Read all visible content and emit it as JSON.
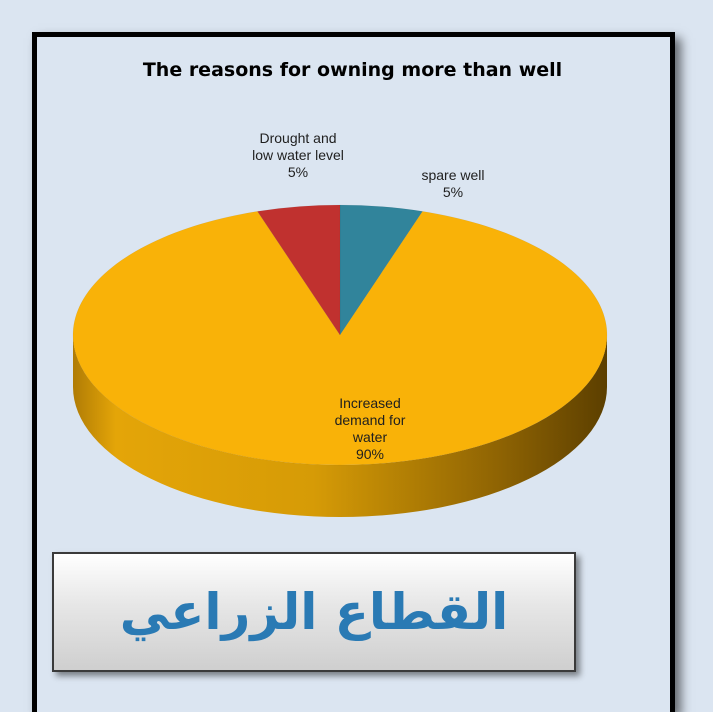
{
  "chart_data": {
    "type": "pie",
    "title": "The reasons for owning more than well",
    "slices": [
      {
        "label": "spare well",
        "value": 5,
        "value_label": "5%",
        "color": "#31849b"
      },
      {
        "label": "Increased demand for water",
        "value": 90,
        "value_label": "90%",
        "color": "#f9b208"
      },
      {
        "label": "Drought and low water level",
        "value": 5,
        "value_label": "5%",
        "color": "#c0312f"
      }
    ],
    "style": "3D"
  },
  "labels": {
    "spare": "spare well\n5%",
    "demand": "Increased\ndemand for\nwater\n90%",
    "drought": "Drought and\nlow water level\n5%"
  },
  "sector_label": "القطاع الزراعي",
  "colors": {
    "background": "#dbe5f1",
    "sector_text": "#2a7ab4"
  }
}
